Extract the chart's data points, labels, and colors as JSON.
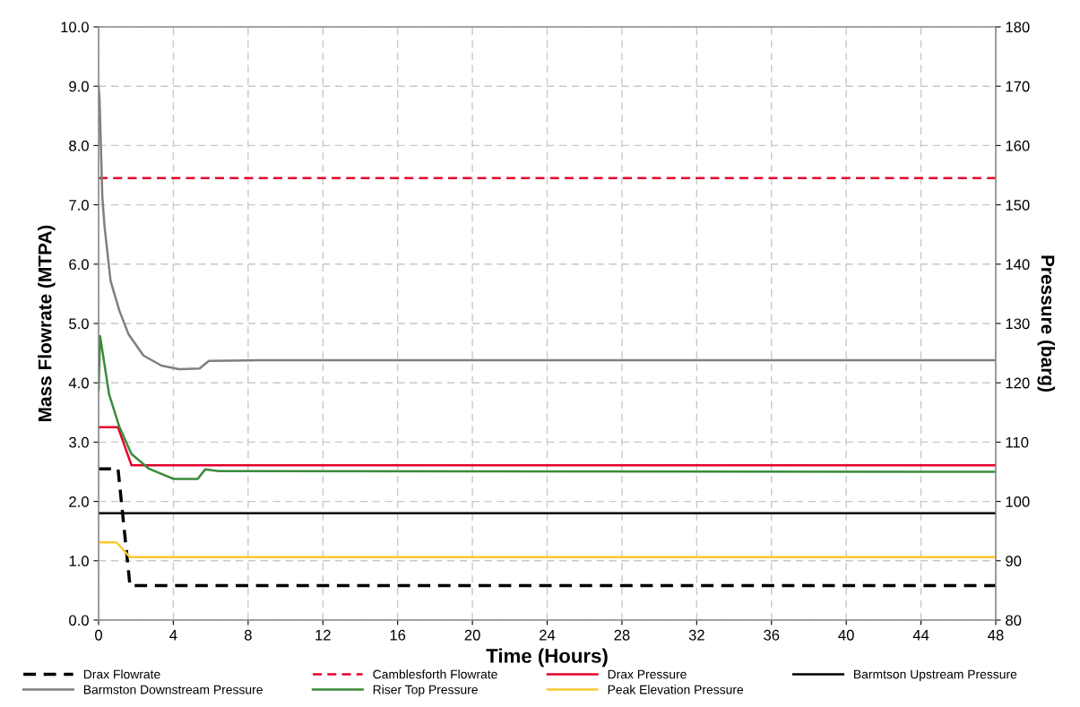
{
  "chart_data": {
    "type": "line",
    "xlabel": "Time (Hours)",
    "ylabel": "Mass Flowrate (MTPA)",
    "y2label": "Pressure (barg)",
    "xlim": [
      0,
      48
    ],
    "xticks": [
      0,
      4,
      8,
      12,
      16,
      20,
      24,
      28,
      32,
      36,
      40,
      44,
      48
    ],
    "ylim": [
      0,
      10
    ],
    "yticks": [
      {
        "value": 0,
        "label": "0.0"
      },
      {
        "value": 1,
        "label": "1.0"
      },
      {
        "value": 2,
        "label": "2.0"
      },
      {
        "value": 3,
        "label": "3.0"
      },
      {
        "value": 4,
        "label": "4.0"
      },
      {
        "value": 5,
        "label": "5.0"
      },
      {
        "value": 6,
        "label": "6.0"
      },
      {
        "value": 7,
        "label": "7.0"
      },
      {
        "value": 8,
        "label": "8.0"
      },
      {
        "value": 9,
        "label": "9.0"
      },
      {
        "value": 10,
        "label": "10.0"
      }
    ],
    "y2lim": [
      80,
      180
    ],
    "y2ticks": [
      80,
      90,
      100,
      110,
      120,
      130,
      140,
      150,
      160,
      170,
      180
    ],
    "grid": true,
    "legend": "bottom",
    "marker": "none",
    "series": [
      {
        "name": "Drax Flowrate",
        "color": "#000000",
        "line_style": "dashed",
        "x": [
          0,
          1.04,
          1.68,
          48
        ],
        "values": [
          2.55,
          2.55,
          0.58,
          0.58
        ]
      },
      {
        "name": "Camblesforth Flowrate",
        "color": "#e4002b",
        "line_style": "dashed",
        "x": [
          0,
          48
        ],
        "values": [
          7.45,
          7.45
        ]
      },
      {
        "name": "Drax Pressure",
        "color": "#e4002b",
        "axis": "y2",
        "x": [
          0,
          1.04,
          1.76,
          48
        ],
        "values": [
          112.5,
          112.5,
          106.1,
          106.1
        ]
      },
      {
        "name": "Barmtson Upstream Pressure",
        "color": "#000000",
        "axis": "y2",
        "x": [
          0,
          48
        ],
        "values": [
          98,
          98
        ]
      },
      {
        "name": "Barmston Downstream Pressure",
        "color": "#7f7f7f",
        "axis": "y2",
        "x": [
          0,
          0.05,
          0.2,
          0.32,
          0.64,
          1.12,
          1.6,
          2.4,
          3.36,
          4.3,
          5.4,
          5.9,
          8.6,
          48
        ],
        "values": [
          170,
          168,
          151.3,
          146.3,
          137.2,
          132.1,
          128.2,
          124.6,
          122.9,
          122.3,
          122.4,
          123.7,
          123.8,
          123.8
        ]
      },
      {
        "name": "Riser Top Pressure",
        "color": "#3a8a3a",
        "axis": "y2",
        "x": [
          0,
          0.08,
          0.56,
          1.12,
          1.76,
          2.7,
          4.0,
          5.3,
          5.7,
          6.4,
          48
        ],
        "values": [
          118.8,
          127.9,
          118.1,
          112.5,
          108,
          105.5,
          103.8,
          103.8,
          105.4,
          105.1,
          105.0
        ]
      },
      {
        "name": "Peak Elevation Pressure",
        "color": "#ffc732",
        "axis": "y2",
        "x": [
          0,
          0.96,
          1.68,
          48
        ],
        "values": [
          93.1,
          93.1,
          90.6,
          90.6
        ]
      }
    ]
  }
}
